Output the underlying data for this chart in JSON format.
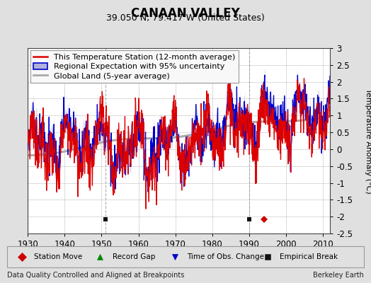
{
  "title": "CANAAN VALLEY",
  "subtitle": "39.050 N, 79.417 W (United States)",
  "ylabel": "Temperature Anomaly (°C)",
  "xlabel_left": "Data Quality Controlled and Aligned at Breakpoints",
  "xlabel_right": "Berkeley Earth",
  "ylim": [
    -2.5,
    3.0
  ],
  "xlim": [
    1930,
    2012
  ],
  "xticks": [
    1930,
    1940,
    1950,
    1960,
    1970,
    1980,
    1990,
    2000,
    2010
  ],
  "yticks": [
    -2.5,
    -2,
    -1.5,
    -1,
    -0.5,
    0,
    0.5,
    1,
    1.5,
    2,
    2.5,
    3
  ],
  "background_color": "#e0e0e0",
  "plot_background": "#ffffff",
  "grid_color": "#cccccc",
  "red_line_color": "#dd0000",
  "blue_line_color": "#0000cc",
  "blue_fill_color": "#b0b0dd",
  "gray_line_color": "#aaaaaa",
  "station_move_color": "#cc0000",
  "record_gap_color": "#008800",
  "obs_change_color": "#0000cc",
  "empirical_break_color": "#111111",
  "marker_y": -2.08,
  "empirical_break_years": [
    1951,
    1990
  ],
  "station_move_years": [
    1994
  ],
  "vertical_line_years": [
    1951,
    1990
  ],
  "title_fontsize": 12,
  "subtitle_fontsize": 9,
  "axis_fontsize": 8,
  "tick_fontsize": 8.5,
  "legend_fontsize": 8
}
